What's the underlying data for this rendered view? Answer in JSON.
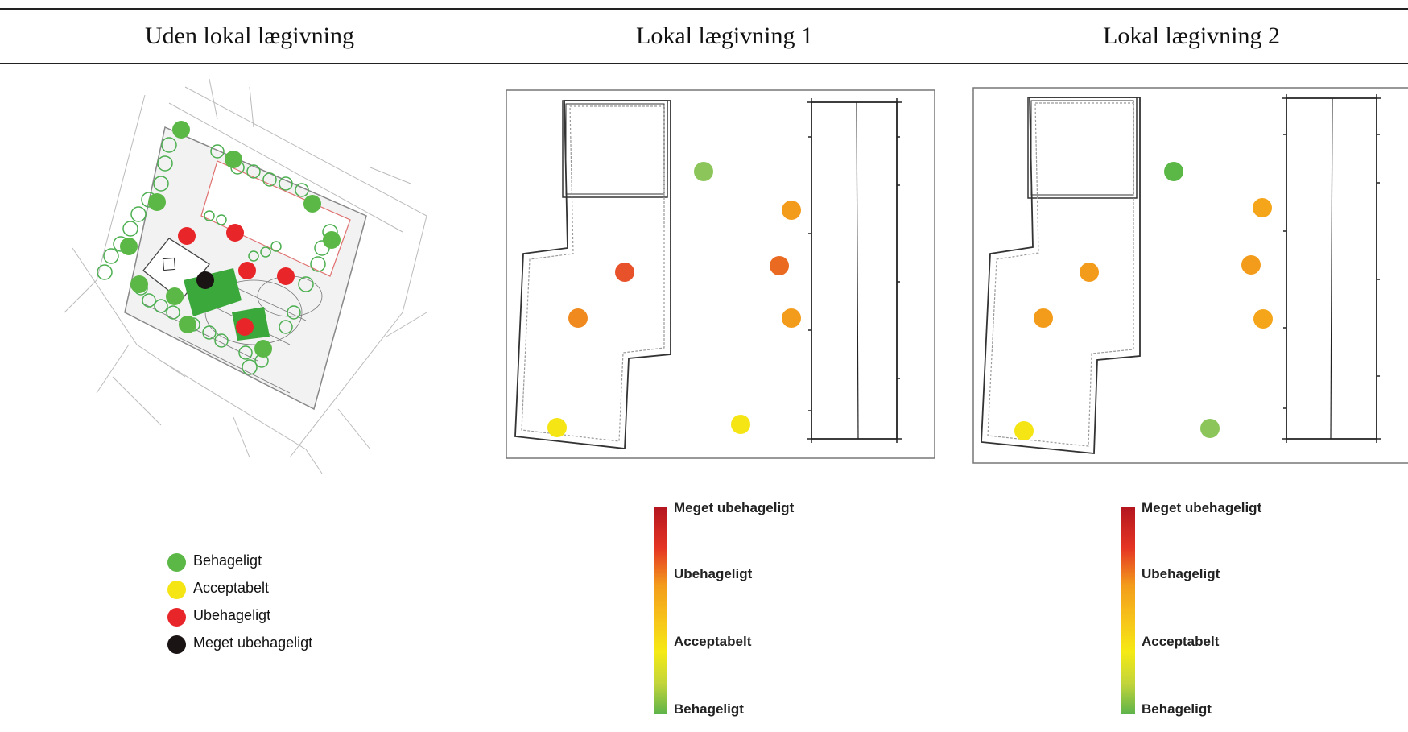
{
  "header": {
    "col1": "Uden lokal lægivning",
    "col2": "Lokal lægivning 1",
    "col3": "Lokal lægivning 2"
  },
  "colors": {
    "behageligt": "#5bb847",
    "acceptabelt": "#f5e514",
    "ubehageligt": "#e8262a",
    "meget_ubehageligt": "#1a1414",
    "light_green": "#8cc65a",
    "orange": "#f39c1b",
    "red_orange": "#e8522a"
  },
  "legend_left": {
    "items": [
      {
        "label": "Behageligt",
        "color": "#5bb847"
      },
      {
        "label": "Acceptabelt",
        "color": "#f5e514"
      },
      {
        "label": "Ubehageligt",
        "color": "#e8262a"
      },
      {
        "label": "Meget ubehageligt",
        "color": "#1a1414"
      }
    ]
  },
  "scale1": {
    "top": "Meget ubehageligt",
    "upper": "Ubehageligt",
    "lower": "Acceptabelt",
    "bottom": "Behageligt"
  },
  "scale2": {
    "top": "Meget ubehageligt",
    "upper": "Ubehageligt",
    "lower": "Acceptabelt",
    "bottom": "Behageligt"
  },
  "map1_points": [
    {
      "level": "behageligt"
    },
    {
      "level": "behageligt"
    },
    {
      "level": "behageligt"
    },
    {
      "level": "behageligt"
    },
    {
      "level": "behageligt"
    },
    {
      "level": "behageligt"
    },
    {
      "level": "behageligt"
    },
    {
      "level": "behageligt"
    },
    {
      "level": "behageligt"
    },
    {
      "level": "behageligt"
    },
    {
      "level": "behageligt"
    },
    {
      "level": "ubehageligt"
    },
    {
      "level": "ubehageligt"
    },
    {
      "level": "ubehageligt"
    },
    {
      "level": "ubehageligt"
    },
    {
      "level": "ubehageligt"
    },
    {
      "level": "meget_ubehageligt"
    }
  ],
  "map2_points": [
    {
      "level": "light_green"
    },
    {
      "level": "orange"
    },
    {
      "level": "red_orange"
    },
    {
      "level": "red_orange"
    },
    {
      "level": "orange"
    },
    {
      "level": "orange"
    },
    {
      "level": "acceptabelt"
    },
    {
      "level": "acceptabelt"
    }
  ],
  "map3_points": [
    {
      "level": "behageligt"
    },
    {
      "level": "orange"
    },
    {
      "level": "orange"
    },
    {
      "level": "orange"
    },
    {
      "level": "orange"
    },
    {
      "level": "orange"
    },
    {
      "level": "acceptabelt"
    },
    {
      "level": "light_green"
    }
  ]
}
